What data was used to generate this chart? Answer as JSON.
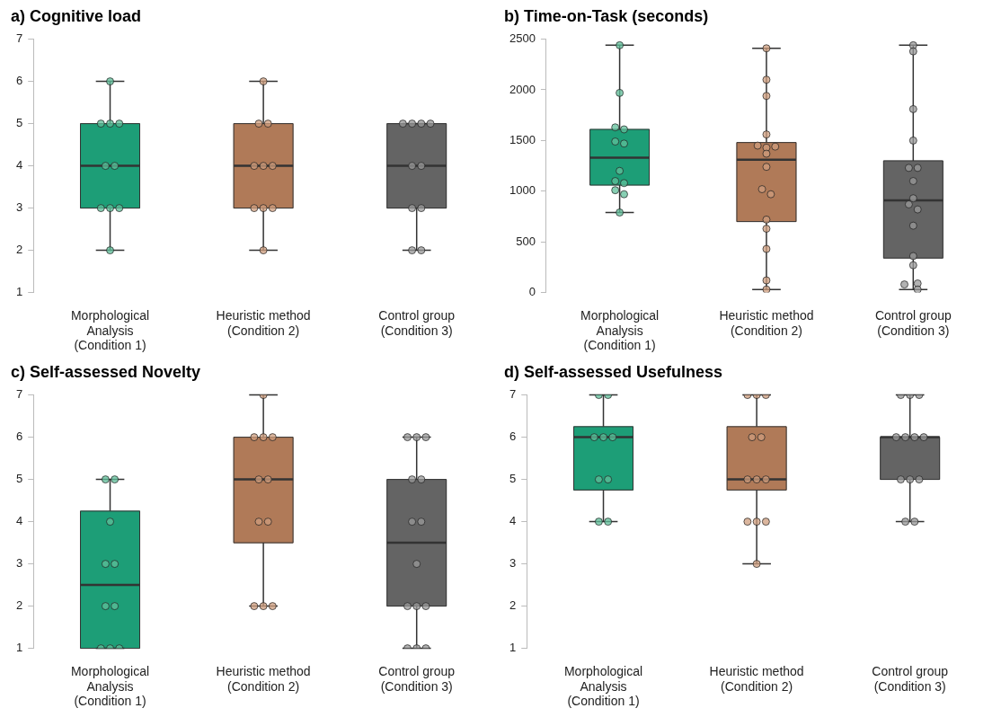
{
  "chart_data": [
    {
      "type": "box",
      "title": "a) Cognitive load",
      "categories": [
        "Morphological Analysis (Condition 1)",
        "Heuristic method (Condition 2)",
        "Control group (Condition 3)"
      ],
      "colors": [
        "#1d9e77",
        "#b07a58",
        "#646464"
      ],
      "ylim": [
        1,
        7
      ],
      "yticks": [
        1,
        2,
        3,
        4,
        5,
        6,
        7
      ],
      "boxes": [
        {
          "low": 2,
          "q1": 3,
          "median": 4,
          "q3": 5,
          "high": 6
        },
        {
          "low": 2,
          "q1": 3,
          "median": 4,
          "q3": 5,
          "high": 6
        },
        {
          "low": 2,
          "q1": 3,
          "median": 4,
          "q3": 5,
          "high": 5
        }
      ],
      "series": [
        {
          "type": "scatter",
          "color": "#5fbf9a",
          "x": [
            "Morphological Analysis (Condition 1)",
            "Morphological Analysis (Condition 1)",
            "Morphological Analysis (Condition 1)",
            "Morphological Analysis (Condition 1)",
            "Morphological Analysis (Condition 1)",
            "Morphological Analysis (Condition 1)",
            "Morphological Analysis (Condition 1)",
            "Morphological Analysis (Condition 1)",
            "Morphological Analysis (Condition 1)",
            "Morphological Analysis (Condition 1)"
          ],
          "values": [
            6,
            5,
            5,
            5,
            4,
            4,
            3,
            3,
            3,
            2
          ]
        },
        {
          "type": "scatter",
          "color": "#cf9e7e",
          "x": [
            "Heuristic method (Condition 2)",
            "Heuristic method (Condition 2)",
            "Heuristic method (Condition 2)",
            "Heuristic method (Condition 2)",
            "Heuristic method (Condition 2)",
            "Heuristic method (Condition 2)",
            "Heuristic method (Condition 2)",
            "Heuristic method (Condition 2)",
            "Heuristic method (Condition 2)",
            "Heuristic method (Condition 2)"
          ],
          "values": [
            6,
            5,
            5,
            4,
            4,
            4,
            3,
            3,
            3,
            2
          ]
        },
        {
          "type": "scatter",
          "color": "#9a9a9a",
          "x": [
            "Control group (Condition 3)",
            "Control group (Condition 3)",
            "Control group (Condition 3)",
            "Control group (Condition 3)",
            "Control group (Condition 3)",
            "Control group (Condition 3)",
            "Control group (Condition 3)",
            "Control group (Condition 3)",
            "Control group (Condition 3)",
            "Control group (Condition 3)"
          ],
          "values": [
            5,
            5,
            5,
            5,
            4,
            4,
            3,
            3,
            2,
            2
          ]
        }
      ]
    },
    {
      "type": "box",
      "title": "b) Time-on-Task (seconds)",
      "categories": [
        "Morphological Analysis (Condition 1)",
        "Heuristic method (Condition 2)",
        "Control group (Condition 3)"
      ],
      "colors": [
        "#1d9e77",
        "#b07a58",
        "#646464"
      ],
      "ylim": [
        0,
        2500
      ],
      "yticks": [
        0,
        500,
        1000,
        1500,
        2000,
        2500
      ],
      "boxes": [
        {
          "low": 790,
          "q1": 1060,
          "median": 1330,
          "q3": 1610,
          "high": 2440
        },
        {
          "low": 30,
          "q1": 700,
          "median": 1310,
          "q3": 1480,
          "high": 2410
        },
        {
          "low": 30,
          "q1": 340,
          "median": 910,
          "q3": 1300,
          "high": 2440
        }
      ],
      "series": [
        {
          "type": "scatter",
          "color": "#5fbf9a",
          "x": [
            "Morphological Analysis (Condition 1)",
            "Morphological Analysis (Condition 1)",
            "Morphological Analysis (Condition 1)",
            "Morphological Analysis (Condition 1)",
            "Morphological Analysis (Condition 1)",
            "Morphological Analysis (Condition 1)",
            "Morphological Analysis (Condition 1)",
            "Morphological Analysis (Condition 1)",
            "Morphological Analysis (Condition 1)",
            "Morphological Analysis (Condition 1)",
            "Morphological Analysis (Condition 1)",
            "Morphological Analysis (Condition 1)"
          ],
          "values": [
            2440,
            1970,
            1630,
            1610,
            1490,
            1470,
            1200,
            1100,
            1080,
            1010,
            970,
            790
          ]
        },
        {
          "type": "scatter",
          "color": "#cf9e7e",
          "x": [
            "Heuristic method (Condition 2)",
            "Heuristic method (Condition 2)",
            "Heuristic method (Condition 2)",
            "Heuristic method (Condition 2)",
            "Heuristic method (Condition 2)",
            "Heuristic method (Condition 2)",
            "Heuristic method (Condition 2)",
            "Heuristic method (Condition 2)",
            "Heuristic method (Condition 2)",
            "Heuristic method (Condition 2)",
            "Heuristic method (Condition 2)",
            "Heuristic method (Condition 2)",
            "Heuristic method (Condition 2)",
            "Heuristic method (Condition 2)",
            "Heuristic method (Condition 2)",
            "Heuristic method (Condition 2)"
          ],
          "values": [
            2410,
            2100,
            1940,
            1560,
            1450,
            1430,
            1440,
            1370,
            1240,
            1020,
            970,
            720,
            630,
            430,
            120,
            30
          ]
        },
        {
          "type": "scatter",
          "color": "#9a9a9a",
          "x": [
            "Control group (Condition 3)",
            "Control group (Condition 3)",
            "Control group (Condition 3)",
            "Control group (Condition 3)",
            "Control group (Condition 3)",
            "Control group (Condition 3)",
            "Control group (Condition 3)",
            "Control group (Condition 3)",
            "Control group (Condition 3)",
            "Control group (Condition 3)",
            "Control group (Condition 3)",
            "Control group (Condition 3)",
            "Control group (Condition 3)",
            "Control group (Condition 3)",
            "Control group (Condition 3)",
            "Control group (Condition 3)"
          ],
          "values": [
            2440,
            2380,
            1810,
            1500,
            1230,
            1230,
            1100,
            930,
            870,
            820,
            660,
            360,
            270,
            80,
            90,
            30
          ]
        }
      ]
    },
    {
      "type": "box",
      "title": "c) Self-assessed Novelty",
      "categories": [
        "Morphological Analysis (Condition 1)",
        "Heuristic method (Condition 2)",
        "Control group (Condition 3)"
      ],
      "colors": [
        "#1d9e77",
        "#b07a58",
        "#646464"
      ],
      "ylim": [
        1,
        7
      ],
      "yticks": [
        1,
        2,
        3,
        4,
        5,
        6,
        7
      ],
      "boxes": [
        {
          "low": 1,
          "q1": 1,
          "median": 2.5,
          "q3": 4.25,
          "high": 5
        },
        {
          "low": 2,
          "q1": 3.5,
          "median": 5,
          "q3": 6,
          "high": 7
        },
        {
          "low": 1,
          "q1": 2,
          "median": 3.5,
          "q3": 5,
          "high": 6
        }
      ],
      "series": [
        {
          "type": "scatter",
          "color": "#5fbf9a",
          "x": [
            "Morphological Analysis (Condition 1)",
            "Morphological Analysis (Condition 1)",
            "Morphological Analysis (Condition 1)",
            "Morphological Analysis (Condition 1)",
            "Morphological Analysis (Condition 1)",
            "Morphological Analysis (Condition 1)",
            "Morphological Analysis (Condition 1)",
            "Morphological Analysis (Condition 1)",
            "Morphological Analysis (Condition 1)",
            "Morphological Analysis (Condition 1)"
          ],
          "values": [
            5,
            5,
            4,
            3,
            3,
            2,
            2,
            1,
            1,
            1
          ]
        },
        {
          "type": "scatter",
          "color": "#cf9e7e",
          "x": [
            "Heuristic method (Condition 2)",
            "Heuristic method (Condition 2)",
            "Heuristic method (Condition 2)",
            "Heuristic method (Condition 2)",
            "Heuristic method (Condition 2)",
            "Heuristic method (Condition 2)",
            "Heuristic method (Condition 2)",
            "Heuristic method (Condition 2)",
            "Heuristic method (Condition 2)",
            "Heuristic method (Condition 2)",
            "Heuristic method (Condition 2)"
          ],
          "values": [
            7,
            6,
            6,
            6,
            5,
            5,
            4,
            4,
            2,
            2,
            2
          ]
        },
        {
          "type": "scatter",
          "color": "#9a9a9a",
          "x": [
            "Control group (Condition 3)",
            "Control group (Condition 3)",
            "Control group (Condition 3)",
            "Control group (Condition 3)",
            "Control group (Condition 3)",
            "Control group (Condition 3)",
            "Control group (Condition 3)",
            "Control group (Condition 3)",
            "Control group (Condition 3)",
            "Control group (Condition 3)",
            "Control group (Condition 3)",
            "Control group (Condition 3)",
            "Control group (Condition 3)",
            "Control group (Condition 3)"
          ],
          "values": [
            6,
            6,
            6,
            5,
            5,
            4,
            4,
            3,
            2,
            2,
            2,
            1,
            1,
            1
          ]
        }
      ]
    },
    {
      "type": "box",
      "title": "d) Self-assessed Usefulness",
      "categories": [
        "Morphological Analysis (Condition 1)",
        "Heuristic method (Condition 2)",
        "Control group (Condition 3)"
      ],
      "colors": [
        "#1d9e77",
        "#b07a58",
        "#646464"
      ],
      "ylim": [
        1,
        7
      ],
      "yticks": [
        1,
        2,
        3,
        4,
        5,
        6,
        7
      ],
      "boxes": [
        {
          "low": 4,
          "q1": 4.75,
          "median": 6,
          "q3": 6.25,
          "high": 7
        },
        {
          "low": 3,
          "q1": 4.75,
          "median": 5,
          "q3": 6.25,
          "high": 7
        },
        {
          "low": 4,
          "q1": 5,
          "median": 6,
          "q3": 6,
          "high": 7
        }
      ],
      "series": [
        {
          "type": "scatter",
          "color": "#5fbf9a",
          "x": [
            "Morphological Analysis (Condition 1)",
            "Morphological Analysis (Condition 1)",
            "Morphological Analysis (Condition 1)",
            "Morphological Analysis (Condition 1)",
            "Morphological Analysis (Condition 1)",
            "Morphological Analysis (Condition 1)",
            "Morphological Analysis (Condition 1)",
            "Morphological Analysis (Condition 1)",
            "Morphological Analysis (Condition 1)"
          ],
          "values": [
            7,
            7,
            6,
            6,
            6,
            5,
            5,
            4,
            4
          ]
        },
        {
          "type": "scatter",
          "color": "#cf9e7e",
          "x": [
            "Heuristic method (Condition 2)",
            "Heuristic method (Condition 2)",
            "Heuristic method (Condition 2)",
            "Heuristic method (Condition 2)",
            "Heuristic method (Condition 2)",
            "Heuristic method (Condition 2)",
            "Heuristic method (Condition 2)",
            "Heuristic method (Condition 2)",
            "Heuristic method (Condition 2)",
            "Heuristic method (Condition 2)",
            "Heuristic method (Condition 2)",
            "Heuristic method (Condition 2)"
          ],
          "values": [
            7,
            7,
            7,
            6,
            6,
            5,
            5,
            5,
            4,
            4,
            4,
            3
          ]
        },
        {
          "type": "scatter",
          "color": "#9a9a9a",
          "x": [
            "Control group (Condition 3)",
            "Control group (Condition 3)",
            "Control group (Condition 3)",
            "Control group (Condition 3)",
            "Control group (Condition 3)",
            "Control group (Condition 3)",
            "Control group (Condition 3)",
            "Control group (Condition 3)",
            "Control group (Condition 3)",
            "Control group (Condition 3)",
            "Control group (Condition 3)",
            "Control group (Condition 3)"
          ],
          "values": [
            7,
            7,
            7,
            6,
            6,
            6,
            6,
            5,
            5,
            5,
            4,
            4
          ]
        }
      ]
    }
  ]
}
